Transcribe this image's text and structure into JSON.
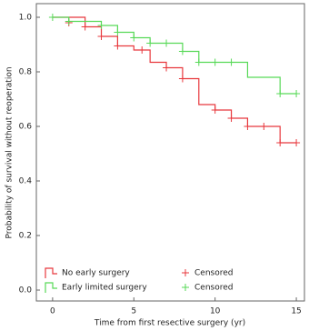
{
  "chart_data": {
    "type": "step",
    "x_label": "Time from first resective surgery (yr)",
    "y_label": "Probability of survival without reoperation",
    "xlim": [
      -1,
      15.5
    ],
    "ylim": [
      -0.04,
      1.05
    ],
    "xticks": [
      0,
      5,
      10,
      15
    ],
    "yticks": [
      {
        "value": 0,
        "label": "0.0"
      },
      0.2,
      0.4,
      0.6,
      0.8,
      {
        "value": 1,
        "label": "1.0"
      }
    ],
    "legend": "lower left",
    "series": [
      {
        "name": "No early surgery",
        "color": "#e8383d",
        "x": [
          0,
          2,
          3,
          4,
          5,
          6,
          7,
          8,
          9,
          10,
          11,
          12,
          14,
          15
        ],
        "values": [
          1,
          0.965,
          0.93,
          0.895,
          0.88,
          0.835,
          0.815,
          0.775,
          0.68,
          0.66,
          0.63,
          0.6,
          0.54,
          0.54
        ],
        "censored": {
          "name": "Censored",
          "x": [
            1,
            2,
            3,
            4,
            5.5,
            7,
            8,
            10,
            11,
            12,
            13,
            14,
            15
          ],
          "values": [
            0.98,
            0.965,
            0.93,
            0.895,
            0.88,
            0.815,
            0.775,
            0.66,
            0.63,
            0.6,
            0.6,
            0.54,
            0.54
          ]
        }
      },
      {
        "name": "Early limited surgery",
        "color": "#57d957",
        "x": [
          0,
          1,
          3,
          4,
          5,
          6,
          8,
          9,
          12,
          14,
          15
        ],
        "values": [
          1,
          0.985,
          0.97,
          0.945,
          0.925,
          0.905,
          0.875,
          0.835,
          0.78,
          0.72,
          0.72
        ],
        "censored": {
          "name": "Censored",
          "x": [
            0,
            1,
            3,
            4,
            5,
            6,
            7,
            8,
            9,
            10,
            11,
            14,
            15
          ],
          "values": [
            1,
            0.985,
            0.97,
            0.945,
            0.925,
            0.905,
            0.905,
            0.875,
            0.835,
            0.835,
            0.835,
            0.72,
            0.72
          ]
        }
      }
    ]
  }
}
